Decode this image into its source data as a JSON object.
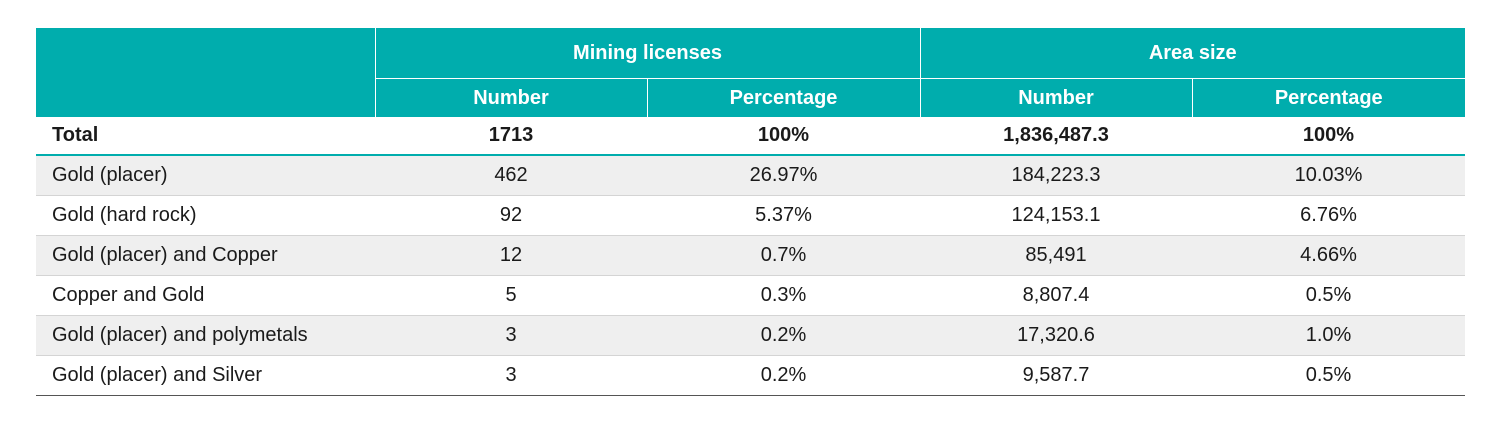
{
  "table": {
    "group_headers": [
      "",
      "Mining licenses",
      "Area size"
    ],
    "sub_headers": [
      "Number",
      "Percentage",
      "Number",
      "Percentage"
    ],
    "total": {
      "label": "Total",
      "values": [
        "1713",
        "100%",
        "1,836,487.3",
        "100%"
      ]
    },
    "rows": [
      {
        "label": "Gold (placer)",
        "values": [
          "462",
          "26.97%",
          "184,223.3",
          "10.03%"
        ]
      },
      {
        "label": "Gold (hard rock)",
        "values": [
          "92",
          "5.37%",
          "124,153.1",
          "6.76%"
        ]
      },
      {
        "label": "Gold (placer) and Copper",
        "values": [
          "12",
          "0.7%",
          "85,491",
          "4.66%"
        ]
      },
      {
        "label": "Copper and Gold",
        "values": [
          "5",
          "0.3%",
          "8,807.4",
          "0.5%"
        ]
      },
      {
        "label": "Gold (placer) and polymetals",
        "values": [
          "3",
          "0.2%",
          "17,320.6",
          "1.0%"
        ]
      },
      {
        "label": "Gold (placer) and Silver",
        "values": [
          "3",
          "0.2%",
          "9,587.7",
          "0.5%"
        ]
      }
    ]
  },
  "colors": {
    "header_bg": "#00adad",
    "header_text": "#ffffff",
    "stripe_bg": "#efefef"
  }
}
